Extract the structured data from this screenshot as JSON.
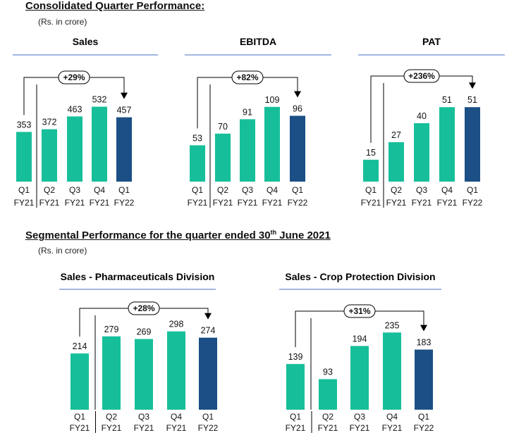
{
  "page": {
    "consolidated_title": "Consolidated Quarter Performance:",
    "consolidated_unit": "(Rs. in crore)",
    "segmental_title": "Segmental Performance for the quarter ended 30",
    "segmental_title_sup": "th",
    "segmental_title_tail": " June 2021",
    "segmental_unit": "(Rs. in crore)"
  },
  "colors": {
    "bar": "#16BF9A",
    "highlight": "#1B4F85",
    "rule": "#4472C4",
    "connector": "#000000"
  },
  "chart_data": [
    {
      "type": "bar",
      "title": "Sales",
      "growth": "+29%",
      "categories": [
        "Q1 FY21",
        "Q2 FY21",
        "Q3 FY21",
        "Q4 FY21",
        "Q1 FY22"
      ],
      "values": [
        353,
        372,
        463,
        532,
        457
      ],
      "value_labels": [
        "353",
        "372",
        "463",
        "532",
        "457"
      ],
      "ylim": [
        0,
        560
      ],
      "highlight_index": 4,
      "legend": "none",
      "grid": false
    },
    {
      "type": "bar",
      "title": "EBITDA",
      "growth": "+82%",
      "categories": [
        "Q1 FY21",
        "Q2 FY21",
        "Q3 FY21",
        "Q4 FY21",
        "Q1 FY22"
      ],
      "values": [
        53,
        70,
        91,
        109,
        96
      ],
      "value_labels": [
        "53",
        "70",
        "91",
        "109",
        "96"
      ],
      "ylim": [
        0,
        115
      ],
      "highlight_index": 4,
      "legend": "none",
      "grid": false
    },
    {
      "type": "bar",
      "title": "PAT",
      "growth": "+236%",
      "categories": [
        "Q1 FY21",
        "Q2 FY21",
        "Q3 FY21",
        "Q4 FY21",
        "Q1 FY22"
      ],
      "values": [
        15,
        27,
        40,
        51,
        51
      ],
      "value_labels": [
        "15",
        "27",
        "40",
        "51",
        "51"
      ],
      "ylim": [
        0,
        54
      ],
      "highlight_index": 4,
      "legend": "none",
      "grid": false
    },
    {
      "type": "bar",
      "title": "Sales - Pharmaceuticals Division",
      "growth": "+28%",
      "categories": [
        "Q1 FY21",
        "Q2 FY21",
        "Q3 FY21",
        "Q4 FY21",
        "Q1 FY22"
      ],
      "values": [
        214,
        279,
        269,
        298,
        274
      ],
      "value_labels": [
        "214",
        "279",
        "269",
        "298",
        "274"
      ],
      "ylim": [
        0,
        300
      ],
      "highlight_index": 4,
      "legend": "none",
      "grid": false
    },
    {
      "type": "bar",
      "title": "Sales - Crop Protection Division",
      "growth": "+31%",
      "categories": [
        "Q1 FY21",
        "Q2 FY21",
        "Q3 FY21",
        "Q4 FY21",
        "Q1 FY22"
      ],
      "values": [
        139,
        93,
        194,
        235,
        183
      ],
      "value_labels": [
        "139",
        "93",
        "194",
        "235",
        "183"
      ],
      "ylim": [
        0,
        240
      ],
      "highlight_index": 4,
      "legend": "none",
      "grid": false
    }
  ]
}
